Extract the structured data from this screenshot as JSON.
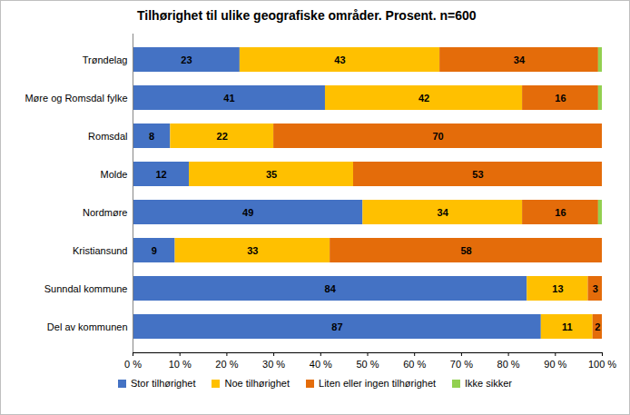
{
  "chart_data": {
    "type": "bar",
    "title": "Tilhørighet til ulike geografiske områder. Prosent. n=600",
    "orientation": "horizontal",
    "stacked": true,
    "data_labels": true,
    "grid": false,
    "legend": "bottom",
    "categories": [
      "Trøndelag",
      "Møre og Romsdal fylke",
      "Romsdal",
      "Molde",
      "Nordmøre",
      "Kristiansund",
      "Sunndal kommune",
      "Del av kommunen"
    ],
    "series": [
      {
        "name": "Stor tilhørighet",
        "color": "#4472c4",
        "values": [
          22.8,
          41,
          8,
          12,
          49,
          9,
          84,
          87
        ],
        "value_labels": [
          "23",
          "41",
          "8",
          "12",
          "49",
          "9",
          "84",
          "87"
        ]
      },
      {
        "name": "Noe tilhørighet",
        "color": "#ffc000",
        "values": [
          42.6,
          42,
          22,
          35,
          34,
          33,
          13,
          11
        ],
        "value_labels": [
          "43",
          "42",
          "22",
          "35",
          "34",
          "33",
          "13",
          "11"
        ]
      },
      {
        "name": "Liten eller ingen tilhørighet",
        "color": "#e46c0a",
        "values": [
          33.8,
          16.2,
          70,
          53,
          16.2,
          58,
          3,
          2
        ],
        "value_labels": [
          "34",
          "16",
          "70",
          "53",
          "16",
          "58",
          "3",
          "2"
        ]
      },
      {
        "name": "Ikke sikker",
        "color": "#92d050",
        "values": [
          0.8,
          0.8,
          0,
          0,
          0.8,
          0,
          0,
          0
        ],
        "value_labels": [
          null,
          null,
          null,
          null,
          null,
          null,
          null,
          null
        ]
      }
    ],
    "xlim": [
      0,
      100
    ],
    "xticks": [
      {
        "value": 0,
        "label": "0 %"
      },
      {
        "value": 10,
        "label": "10 %"
      },
      {
        "value": 20,
        "label": "20 %"
      },
      {
        "value": 30,
        "label": "30 %"
      },
      {
        "value": 40,
        "label": "40 %"
      },
      {
        "value": 50,
        "label": "50 %"
      },
      {
        "value": 60,
        "label": "60 %"
      },
      {
        "value": 70,
        "label": "70 %"
      },
      {
        "value": 80,
        "label": "80 %"
      },
      {
        "value": 90,
        "label": "90 %"
      },
      {
        "value": 100,
        "label": "100 %"
      }
    ]
  }
}
